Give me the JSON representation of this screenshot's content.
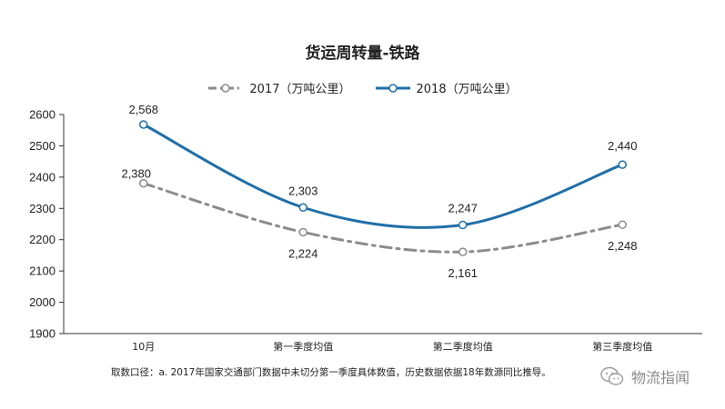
{
  "chart_data": {
    "type": "line",
    "title": "货运周转量-铁路",
    "categories": [
      "10月",
      "第一季度均值",
      "第二季度均值",
      "第三季度均值"
    ],
    "series": [
      {
        "name": "2017（万吨公里）",
        "values": [
          2380,
          2224,
          2161,
          2248
        ],
        "labels": [
          "2,380",
          "2,224",
          "2,161",
          "2,248"
        ],
        "color": "#8c8c8c",
        "style": "dash-dot",
        "smooth": true
      },
      {
        "name": "2018（万吨公里）",
        "values": [
          2568,
          2303,
          2247,
          2440
        ],
        "labels": [
          "2,568",
          "2,303",
          "2,247",
          "2,440"
        ],
        "color": "#1f6fa8",
        "style": "solid",
        "smooth": true
      }
    ],
    "ylim": [
      1900,
      2600
    ],
    "yticks": [
      1900,
      2000,
      2100,
      2200,
      2300,
      2400,
      2500,
      2600
    ],
    "grid": false,
    "legend": "top-center"
  },
  "footnote": "取数口径：a. 2017年国家交通部门数据中未切分第一季度具体数值，历史数据依据18年数源同比推导。",
  "watermark": {
    "text": "物流指闻",
    "icon": "wechat-icon"
  }
}
